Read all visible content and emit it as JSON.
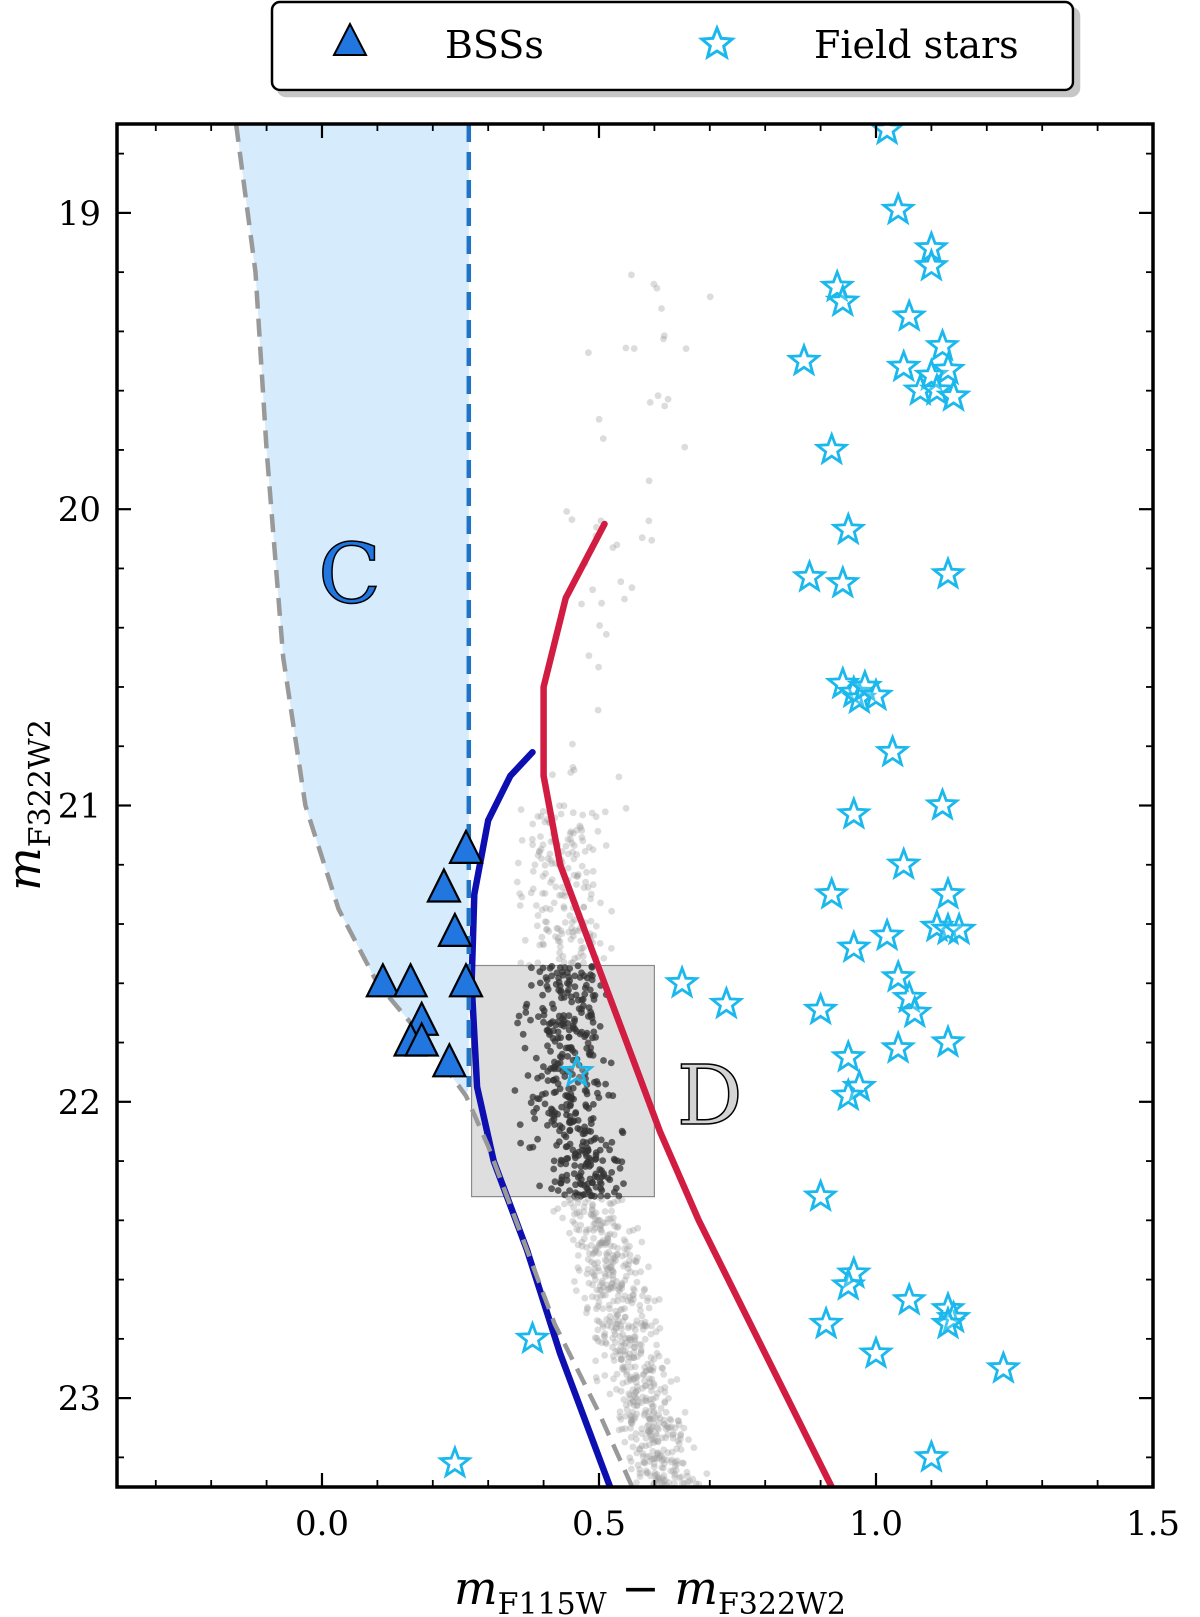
{
  "chart_data": {
    "type": "scatter",
    "title": "",
    "xlabel": {
      "main": "m",
      "sub1": "F115W",
      "minus": " − ",
      "main2": "m",
      "sub2": "F322W2"
    },
    "ylabel": {
      "main": "m",
      "sub": "F322W2"
    },
    "xlim": [
      -0.37,
      1.5
    ],
    "ylim": [
      23.3,
      18.7
    ],
    "x_ticks": [
      0.0,
      0.5,
      1.0,
      1.5
    ],
    "x_tick_labels": [
      "0.0",
      "0.5",
      "1.0",
      "1.5"
    ],
    "y_ticks": [
      19,
      20,
      21,
      22,
      23
    ],
    "y_tick_labels": [
      "19",
      "20",
      "21",
      "22",
      "23"
    ],
    "legend": {
      "position": "top-center",
      "entries": [
        {
          "label": "BSSs",
          "marker": "triangle",
          "color": "#2176e0"
        },
        {
          "label": "Field stars",
          "marker": "star",
          "color": "#1ab8ec"
        }
      ]
    },
    "regions": [
      {
        "label": "C",
        "color": "#d6ebfb",
        "label_color": "#2176e0",
        "label_at": [
          0.05,
          20.22
        ]
      },
      {
        "label": "D",
        "color": "#dddddd",
        "label_color": "#d4d4d4",
        "label_at": [
          0.7,
          21.98
        ],
        "color_range": [
          0.27,
          0.6
        ],
        "mag_range": [
          21.54,
          22.32
        ]
      }
    ],
    "series": [
      {
        "name": "BSSs",
        "type": "scatter",
        "marker": "triangle",
        "color": "#2176e0",
        "points": [
          [
            0.26,
            21.15
          ],
          [
            0.22,
            21.28
          ],
          [
            0.24,
            21.43
          ],
          [
            0.26,
            21.6
          ],
          [
            0.11,
            21.6
          ],
          [
            0.16,
            21.6
          ],
          [
            0.18,
            21.73
          ],
          [
            0.16,
            21.8
          ],
          [
            0.18,
            21.8
          ],
          [
            0.23,
            21.87
          ]
        ]
      },
      {
        "name": "Field stars",
        "type": "scatter",
        "marker": "star",
        "color": "#1ab8ec",
        "points": [
          [
            1.02,
            18.72
          ],
          [
            1.04,
            18.99
          ],
          [
            1.1,
            19.12
          ],
          [
            1.1,
            19.18
          ],
          [
            0.93,
            19.25
          ],
          [
            0.94,
            19.3
          ],
          [
            1.06,
            19.35
          ],
          [
            1.12,
            19.45
          ],
          [
            0.87,
            19.5
          ],
          [
            1.05,
            19.52
          ],
          [
            1.1,
            19.55
          ],
          [
            1.13,
            19.53
          ],
          [
            1.08,
            19.6
          ],
          [
            1.11,
            19.6
          ],
          [
            1.14,
            19.62
          ],
          [
            0.92,
            19.8
          ],
          [
            0.95,
            20.07
          ],
          [
            0.88,
            20.23
          ],
          [
            0.94,
            20.25
          ],
          [
            1.13,
            20.22
          ],
          [
            0.94,
            20.59
          ],
          [
            0.96,
            20.62
          ],
          [
            0.97,
            20.64
          ],
          [
            0.98,
            20.6
          ],
          [
            1.0,
            20.63
          ],
          [
            1.03,
            20.82
          ],
          [
            0.96,
            21.03
          ],
          [
            1.12,
            21.0
          ],
          [
            1.05,
            21.2
          ],
          [
            0.92,
            21.3
          ],
          [
            1.13,
            21.3
          ],
          [
            1.11,
            21.41
          ],
          [
            1.13,
            21.42
          ],
          [
            1.15,
            21.42
          ],
          [
            1.02,
            21.44
          ],
          [
            0.96,
            21.48
          ],
          [
            1.04,
            21.58
          ],
          [
            1.06,
            21.65
          ],
          [
            1.07,
            21.7
          ],
          [
            0.65,
            21.6
          ],
          [
            0.73,
            21.67
          ],
          [
            0.9,
            21.69
          ],
          [
            1.13,
            21.8
          ],
          [
            1.04,
            21.82
          ],
          [
            0.95,
            21.85
          ],
          [
            0.46,
            21.9
          ],
          [
            0.97,
            21.95
          ],
          [
            0.95,
            21.98
          ],
          [
            0.9,
            22.32
          ],
          [
            0.96,
            22.58
          ],
          [
            0.95,
            22.62
          ],
          [
            1.06,
            22.67
          ],
          [
            1.13,
            22.7
          ],
          [
            1.14,
            22.73
          ],
          [
            1.13,
            22.75
          ],
          [
            0.91,
            22.75
          ],
          [
            0.38,
            22.8
          ],
          [
            1.0,
            22.85
          ],
          [
            1.23,
            22.9
          ],
          [
            1.1,
            23.2
          ],
          [
            0.24,
            23.22
          ]
        ]
      },
      {
        "name": "Blue isochrone",
        "type": "line",
        "color": "#0d0fb0",
        "points": [
          [
            0.38,
            20.82
          ],
          [
            0.34,
            20.9
          ],
          [
            0.3,
            21.05
          ],
          [
            0.275,
            21.3
          ],
          [
            0.27,
            21.6
          ],
          [
            0.28,
            21.95
          ],
          [
            0.31,
            22.2
          ],
          [
            0.37,
            22.5
          ],
          [
            0.43,
            22.85
          ],
          [
            0.48,
            23.1
          ],
          [
            0.52,
            23.3
          ]
        ]
      },
      {
        "name": "Red isochrone",
        "type": "line",
        "color": "#d21d42",
        "points": [
          [
            0.51,
            20.05
          ],
          [
            0.44,
            20.3
          ],
          [
            0.4,
            20.6
          ],
          [
            0.4,
            20.9
          ],
          [
            0.43,
            21.2
          ],
          [
            0.49,
            21.5
          ],
          [
            0.55,
            21.8
          ],
          [
            0.61,
            22.1
          ],
          [
            0.68,
            22.4
          ],
          [
            0.76,
            22.7
          ],
          [
            0.84,
            23.0
          ],
          [
            0.92,
            23.3
          ]
        ]
      },
      {
        "name": "Gray dashed boundary",
        "type": "line",
        "color": "#999999",
        "dash": "dashed",
        "points": [
          [
            -0.155,
            18.7
          ],
          [
            -0.12,
            19.2
          ],
          [
            -0.1,
            19.8
          ],
          [
            -0.07,
            20.5
          ],
          [
            -0.03,
            21.0
          ],
          [
            0.03,
            21.35
          ],
          [
            0.1,
            21.6
          ],
          [
            0.19,
            21.8
          ],
          [
            0.26,
            21.98
          ],
          [
            0.3,
            22.15
          ],
          [
            0.35,
            22.4
          ],
          [
            0.42,
            22.75
          ],
          [
            0.5,
            23.05
          ],
          [
            0.56,
            23.3
          ]
        ]
      },
      {
        "name": "Blue dashed limit",
        "type": "line",
        "color": "#2173c4",
        "dash": "dashed",
        "points": [
          [
            0.265,
            18.7
          ],
          [
            0.265,
            21.95
          ]
        ]
      }
    ],
    "background_points": {
      "name": "Cluster members",
      "color": "#9a9a9a",
      "note": "dense gray main-sequence population plus darker subset inside region D"
    }
  }
}
